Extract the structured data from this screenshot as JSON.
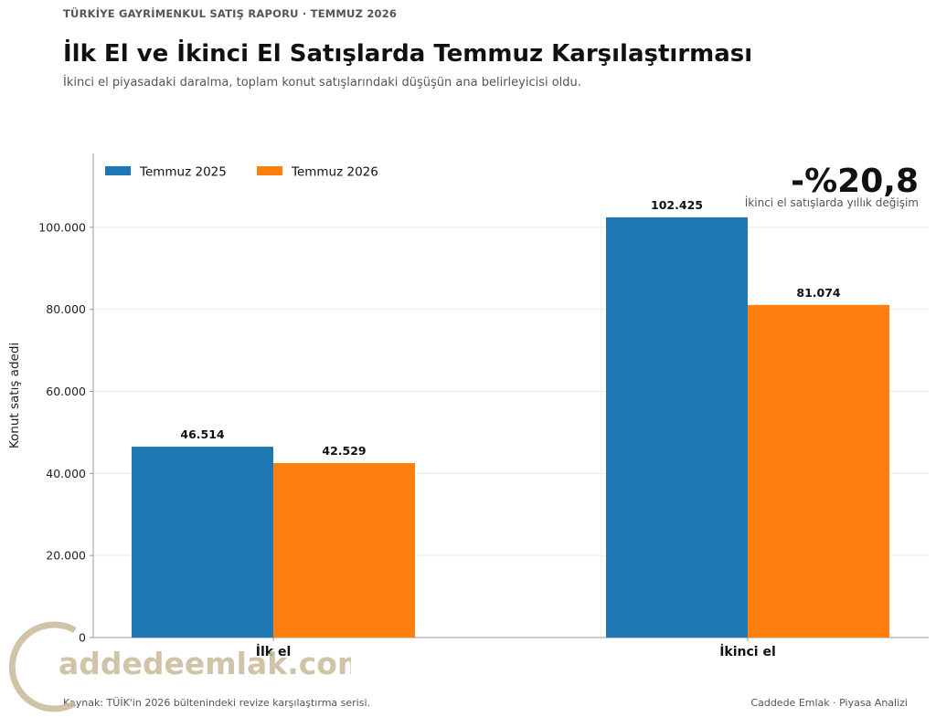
{
  "header": {
    "kicker": "TÜRKİYE GAYRİMENKUL SATIŞ RAPORU · TEMMUZ 2026",
    "title": "İlk El ve İkinci El Satışlarda Temmuz Karşılaştırması",
    "subtitle": "İkinci el piyasadaki daralma, toplam konut satışlarındaki düşüşün ana belirleyicisi oldu."
  },
  "callout": {
    "value": "-%20,8",
    "label": "İkinci el satışlarda yıllık değişim"
  },
  "chart_data": {
    "type": "bar",
    "categories": [
      "İlk el",
      "İkinci el"
    ],
    "series": [
      {
        "name": "Temmuz 2025",
        "values": [
          46514,
          102425
        ],
        "labels": [
          "46.514",
          "102.425"
        ],
        "color": "#1f77b4"
      },
      {
        "name": "Temmuz 2026",
        "values": [
          42529,
          81074
        ],
        "labels": [
          "42.529",
          "81.074"
        ],
        "color": "#ff7f0e"
      }
    ],
    "xlabel": "",
    "ylabel": "Konut satış adedi",
    "ylim": [
      0,
      118000
    ],
    "yticks": [
      0,
      20000,
      40000,
      60000,
      80000,
      100000
    ],
    "ytick_labels": [
      "0",
      "20.000",
      "40.000",
      "60.000",
      "80.000",
      "100.000"
    ],
    "grid": true,
    "legend_position": "top-left"
  },
  "footer": {
    "source": "Kaynak: TÜİK'in 2026 bültenindeki revize karşılaştırma serisi.",
    "credit": "Caddede Emlak · Piyasa Analizi"
  },
  "watermark": {
    "text": "addedeemlak.com",
    "color": "#c8b99a"
  }
}
